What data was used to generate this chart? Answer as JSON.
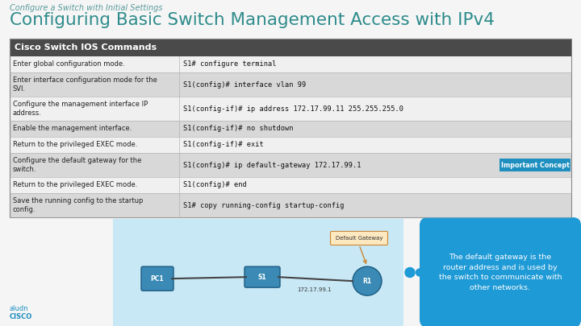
{
  "subtitle": "Configure a Switch with Initial Settings",
  "title": "Configuring Basic Switch Management Access with IPv4",
  "table_header": "Cisco Switch IOS Commands",
  "table_rows": [
    [
      "Enter global configuration mode.",
      "S1# configure terminal"
    ],
    [
      "Enter interface configuration mode for the\nSVI.",
      "S1(config)# interface vlan 99"
    ],
    [
      "Configure the management interface IP\naddress.",
      "S1(config-if)# ip address 172.17.99.11 255.255.255.0"
    ],
    [
      "Enable the management interface.",
      "S1(config-if)# no shutdown"
    ],
    [
      "Return to the privileged EXEC mode.",
      "S1(config-if)# exit"
    ],
    [
      "Configure the default gateway for the\nswitch.",
      "S1(config)# ip default-gateway 172.17.99.1"
    ],
    [
      "Return to the privileged EXEC mode.",
      "S1(config)# end"
    ],
    [
      "Save the running config to the startup\nconfig.",
      "S1# copy running-config startup-config"
    ]
  ],
  "important_label": "Important Concept",
  "important_row": 5,
  "cloud_text": "The default gateway is the\nrouter address and is used by\nthe switch to communicate with\nother networks.",
  "bg_color": "#f5f5f5",
  "title_color": "#2e8b8b",
  "subtitle_color": "#5a9a9a",
  "header_bg": "#4a4a4a",
  "header_text_color": "#ffffff",
  "row_bg_light": "#f0f0f0",
  "row_bg_dark": "#d8d8d8",
  "table_text_color": "#222222",
  "cmd_text_color": "#111111",
  "divider_color": "#aaaaaa",
  "important_bg": "#1e8fbf",
  "important_text": "#ffffff",
  "arrow_color": "#1e8fbf",
  "cloud_bg": "#1e9ad6",
  "cloud_text_color": "#ffffff",
  "diagram_bg": "#c8e8f5",
  "device_color": "#3a8ab5",
  "device_edge": "#1a5a80",
  "line_color": "#444444",
  "dg_box_bg": "#fde8c0",
  "dg_box_edge": "#cc8833",
  "cisco_color": "#1e8fbf"
}
